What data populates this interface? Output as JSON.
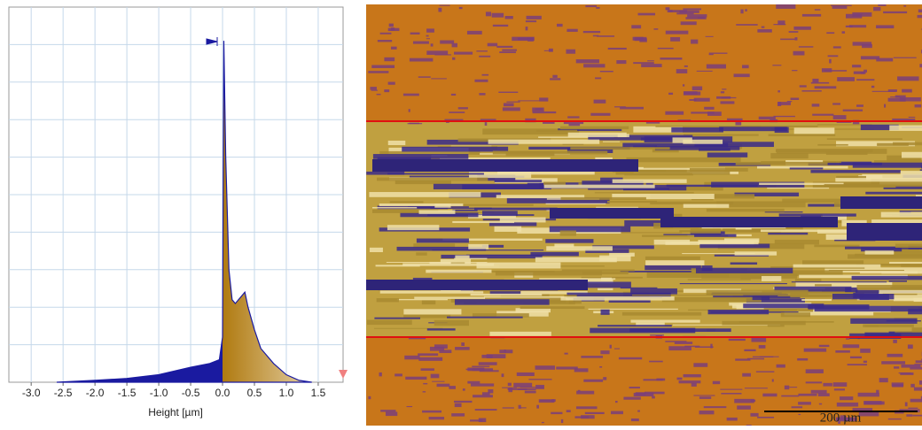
{
  "chart_data": {
    "type": "area",
    "x_label": "Height [µm]",
    "x": [
      -2.6,
      -2.0,
      -1.5,
      -1.0,
      -0.5,
      -0.2,
      -0.05,
      0.0,
      0.02,
      0.05,
      0.1,
      0.15,
      0.2,
      0.3,
      0.35,
      0.4,
      0.5,
      0.6,
      0.8,
      1.0,
      1.2,
      1.4
    ],
    "values": [
      0,
      0.5,
      1,
      2,
      4,
      5,
      6,
      12,
      91,
      60,
      30,
      22,
      21,
      23,
      24,
      20,
      14,
      9,
      5,
      2,
      0.5,
      0
    ],
    "color": "#1a1aa0",
    "xlim": [
      -3.35,
      1.89
    ],
    "ylim": [
      0,
      100
    ],
    "xticks": [
      {
        "value": -3,
        "label": "-3.0"
      },
      {
        "value": -2.5,
        "label": "-2.5"
      },
      {
        "value": -2,
        "label": "-2.0"
      },
      {
        "value": -1.5,
        "label": "-1.5"
      },
      {
        "value": -1,
        "label": "-1.0"
      },
      {
        "value": -0.5,
        "label": "-0.5"
      },
      {
        "value": 0,
        "label": "0.0"
      },
      {
        "value": 0.5,
        "label": "0.5"
      },
      {
        "value": 1,
        "label": "1.0"
      },
      {
        "value": 1.5,
        "label": "1.5"
      }
    ],
    "grid": true
  },
  "image": {
    "scale_bar": "200 µm"
  }
}
